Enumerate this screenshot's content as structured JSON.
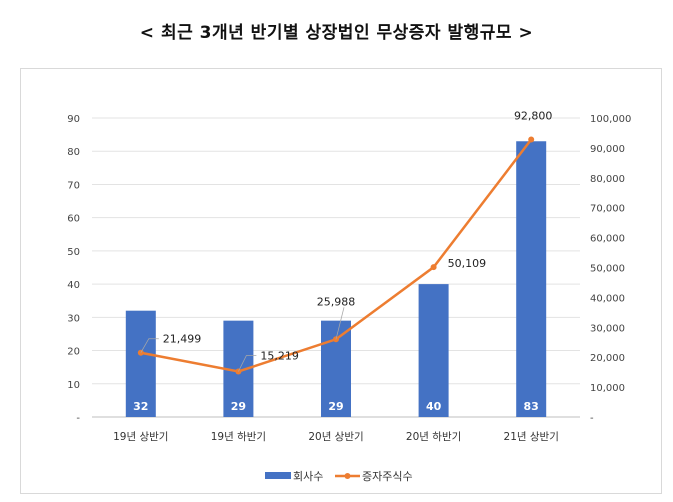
{
  "chart_data": {
    "type": "bar+line",
    "title": "< 최근 3개년 반기별 상장법인 무상증자 발행규모 >",
    "categories": [
      "19년 상반기",
      "19년 하반기",
      "20년 상반기",
      "20년 하반기",
      "21년 상반기"
    ],
    "series": [
      {
        "name": "회사수",
        "type": "bar",
        "axis": "left",
        "color": "#4472c4",
        "values": [
          32,
          29,
          29,
          40,
          83
        ],
        "labels": [
          "32",
          "29",
          "29",
          "40",
          "83"
        ]
      },
      {
        "name": "증자주식수",
        "type": "line",
        "axis": "right",
        "color": "#ed7d31",
        "values": [
          21499,
          15219,
          25988,
          50109,
          92800
        ],
        "labels": [
          "21,499",
          "15,219",
          "25,988",
          "50,109",
          "92,800"
        ]
      }
    ],
    "left_axis": {
      "ylim": [
        0,
        90
      ],
      "ticks": [
        "-",
        "10",
        "20",
        "30",
        "40",
        "50",
        "60",
        "70",
        "80",
        "90"
      ]
    },
    "right_axis": {
      "ylim": [
        0,
        100000
      ],
      "ticks": [
        "-",
        "10,000",
        "20,000",
        "30,000",
        "40,000",
        "50,000",
        "60,000",
        "70,000",
        "80,000",
        "90,000",
        "100,000"
      ]
    },
    "grid": true,
    "legend": "bottom"
  }
}
